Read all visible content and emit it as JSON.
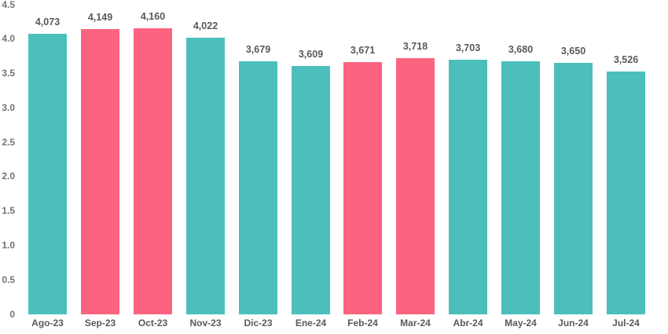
{
  "chart_data": {
    "type": "bar",
    "title": "",
    "categories": [
      "Ago-23",
      "Sep-23",
      "Oct-23",
      "Nov-23",
      "Dic-23",
      "Ene-24",
      "Feb-24",
      "Mar-24",
      "Abr-24",
      "May-24",
      "Jun-24",
      "Jul-24"
    ],
    "values": [
      4073,
      4149,
      4160,
      4022,
      3679,
      3609,
      3671,
      3718,
      3703,
      3680,
      3650,
      3526
    ],
    "value_labels": [
      "4,073",
      "4,149",
      "4,160",
      "4,022",
      "3,679",
      "3,609",
      "3,671",
      "3,718",
      "3,703",
      "3,680",
      "3,650",
      "3,526"
    ],
    "bar_colors": [
      "teal",
      "pink",
      "pink",
      "teal",
      "teal",
      "teal",
      "pink",
      "pink",
      "teal",
      "teal",
      "teal",
      "teal"
    ],
    "palette": {
      "teal": "#4CBFBC",
      "pink": "#FC6380"
    },
    "y_ticks": [
      {
        "value": 0,
        "label": "0"
      },
      {
        "value": 0.5,
        "label": "0.5"
      },
      {
        "value": 1,
        "label": "1.0"
      },
      {
        "value": 1.5,
        "label": "1.5"
      },
      {
        "value": 2,
        "label": "2.0"
      },
      {
        "value": 2.5,
        "label": "2.5"
      },
      {
        "value": 3,
        "label": "3.0"
      },
      {
        "value": 3.5,
        "label": "3.5"
      },
      {
        "value": 4,
        "label": "4.0"
      },
      {
        "value": 4.5,
        "label": "4.5"
      }
    ],
    "ylim": [
      0,
      4.5
    ],
    "value_divisor": 1000,
    "grid": false,
    "legend": null,
    "xlabel": "",
    "ylabel": "",
    "text_colors": {
      "value_label": "#595959",
      "axis_tick": "#737373",
      "category_label": "#595959"
    },
    "background": "#ffffff"
  }
}
